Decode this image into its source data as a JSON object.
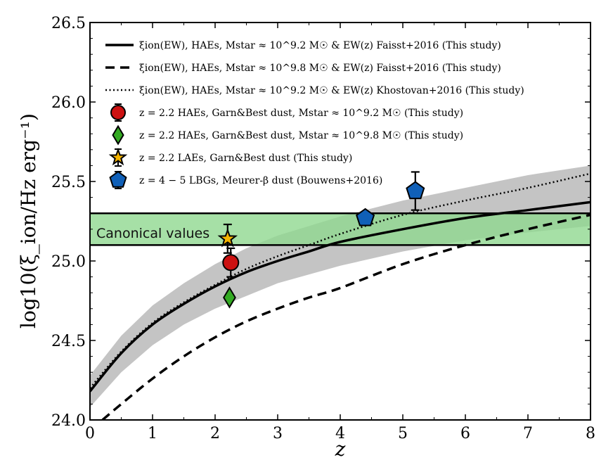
{
  "chart_data": {
    "type": "line",
    "xlabel": "z",
    "ylabel": "log10(ξ_ion/Hz erg⁻¹)",
    "xlim": [
      0,
      8
    ],
    "ylim": [
      24.0,
      26.5
    ],
    "x_ticks": [
      "0",
      "1",
      "2",
      "3",
      "4",
      "5",
      "6",
      "7",
      "8"
    ],
    "y_ticks": [
      "24.0",
      "24.5",
      "25.0",
      "25.5",
      "26.0",
      "26.5"
    ],
    "x_tick_values": [
      0,
      1,
      2,
      3,
      4,
      5,
      6,
      7,
      8
    ],
    "y_tick_values": [
      24.0,
      24.5,
      25.0,
      25.5,
      26.0,
      26.5
    ],
    "canonical_band": {
      "label": "Canonical values",
      "y_low": 25.1,
      "y_high": 25.3,
      "color": "#90d890"
    },
    "uncertainty_band": {
      "color": "#c4c4c4",
      "x": [
        0,
        0.5,
        1,
        1.5,
        2,
        2.5,
        3,
        4,
        5,
        6,
        7,
        8
      ],
      "lower": [
        24.08,
        24.3,
        24.47,
        24.6,
        24.7,
        24.78,
        24.86,
        24.97,
        25.06,
        25.13,
        25.18,
        25.22
      ],
      "upper": [
        24.28,
        24.53,
        24.72,
        24.86,
        24.98,
        25.08,
        25.16,
        25.28,
        25.38,
        25.46,
        25.54,
        25.6
      ]
    },
    "series": [
      {
        "name": "ξion(EW), HAEs, Mstar ≈ 10^9.2 M☉ & EW(z) Faisst+2016 (This study)",
        "style": "solid",
        "x": [
          0,
          0.5,
          1,
          1.5,
          2,
          2.5,
          3,
          3.5,
          4,
          5,
          6,
          7,
          8
        ],
        "y": [
          24.18,
          24.42,
          24.6,
          24.73,
          24.84,
          24.93,
          25.0,
          25.06,
          25.12,
          25.2,
          25.27,
          25.32,
          25.37
        ]
      },
      {
        "name": "ξion(EW), HAEs, Mstar ≈ 10^9.8 M☉ & EW(z) Faisst+2016 (This study)",
        "style": "dashed",
        "x": [
          0.2,
          0.5,
          1,
          1.5,
          2,
          2.5,
          3,
          3.5,
          4,
          5,
          6,
          7,
          8
        ],
        "y": [
          24.0,
          24.1,
          24.26,
          24.4,
          24.52,
          24.62,
          24.7,
          24.77,
          24.83,
          24.98,
          25.1,
          25.2,
          25.29
        ]
      },
      {
        "name": "ξion(EW), HAEs, Mstar ≈ 10^9.2 M☉ & EW(z) Khostovan+2016 (This study)",
        "style": "dotted",
        "x": [
          0,
          0.5,
          1,
          1.5,
          2,
          2.5,
          3,
          3.5,
          4,
          5,
          6,
          7,
          8
        ],
        "y": [
          24.2,
          24.43,
          24.61,
          24.74,
          24.85,
          24.95,
          25.03,
          25.1,
          25.17,
          25.29,
          25.38,
          25.46,
          25.55
        ]
      }
    ],
    "points": [
      {
        "name": "z = 2.2 HAEs, Garn&Best dust, Mstar ≈ 10^9.2 M☉ (This study)",
        "marker": "circle",
        "color": "#cc1111",
        "x": 2.25,
        "y": 24.99,
        "yerr": 0.09
      },
      {
        "name": "z = 2.2 HAEs, Garn&Best dust, Mstar ≈ 10^9.8 M☉ (This study)",
        "marker": "diamond",
        "color": "#33aa22",
        "x": 2.23,
        "y": 24.77,
        "yerr": 0.0
      },
      {
        "name": "z = 2.2 LAEs, Garn&Best dust (This study)",
        "marker": "star",
        "color": "#f5b400",
        "x": 2.2,
        "y": 25.14,
        "yerr": 0.09
      },
      {
        "name": "z = 4 − 5 LBGs, Meurer-β dust (Bouwens+2016)",
        "marker": "pentagon",
        "color": "#1060b8",
        "x": 4.4,
        "y": 25.27,
        "yerr": 0.0
      },
      {
        "name": "z = 4 − 5 LBGs, Meurer-β dust (Bouwens+2016)",
        "marker": "pentagon",
        "color": "#1060b8",
        "x": 5.2,
        "y": 25.44,
        "yerr": 0.12
      }
    ],
    "legend": {
      "position": "top-left",
      "entries": [
        "ξion(EW), HAEs, Mstar ≈ 10^9.2 M☉ & EW(z) Faisst+2016 (This study)",
        "ξion(EW), HAEs, Mstar ≈ 10^9.8 M☉ & EW(z) Faisst+2016 (This study)",
        "ξion(EW), HAEs, Mstar ≈ 10^9.2 M☉ & EW(z) Khostovan+2016 (This study)",
        "z = 2.2 HAEs, Garn&Best dust, Mstar ≈ 10^9.2 M☉ (This study)",
        "z = 2.2 HAEs, Garn&Best dust, Mstar ≈ 10^9.8 M☉ (This study)",
        "z = 2.2 LAEs, Garn&Best dust (This study)",
        "z = 4 − 5 LBGs, Meurer-β dust (Bouwens+2016)"
      ]
    }
  }
}
